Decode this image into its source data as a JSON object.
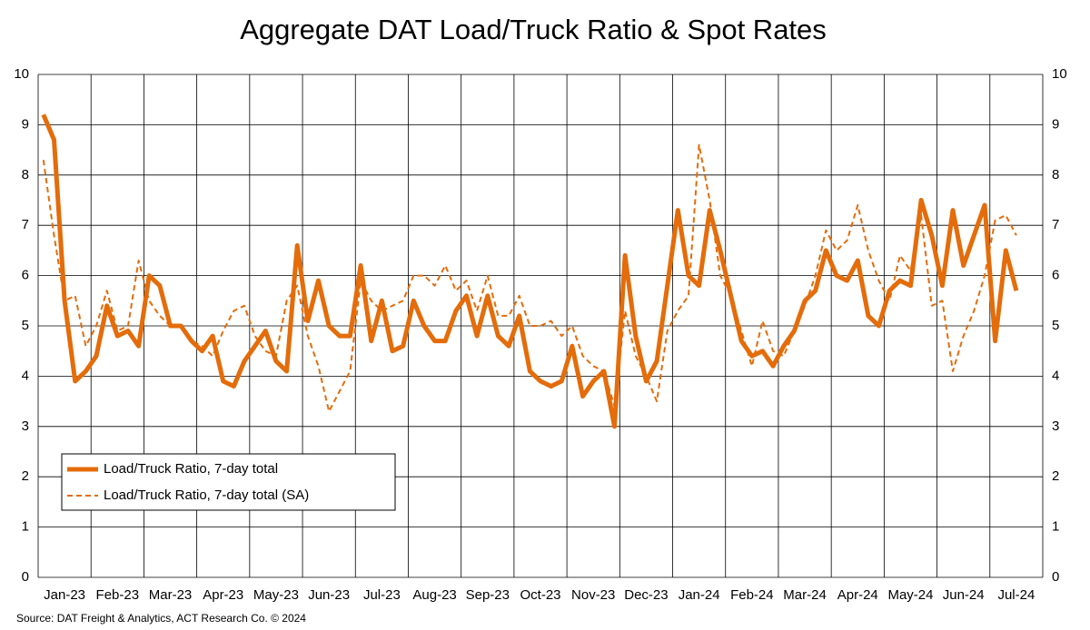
{
  "chart_data": {
    "type": "line",
    "title": "Aggregate DAT Load/Truck Ratio & Spot Rates",
    "source": "Source: DAT Freight & Analytics, ACT Research Co. © 2024",
    "categories": [
      null,
      null,
      "Jan-23",
      null,
      null,
      null,
      null,
      "Feb-23",
      null,
      null,
      null,
      null,
      "Mar-23",
      null,
      null,
      null,
      null,
      "Apr-23",
      null,
      null,
      null,
      null,
      "May-23",
      null,
      null,
      null,
      null,
      "Jun-23",
      null,
      null,
      null,
      null,
      "Jul-23",
      null,
      null,
      null,
      null,
      "Aug-23",
      null,
      null,
      null,
      null,
      "Sep-23",
      null,
      null,
      null,
      null,
      "Oct-23",
      null,
      null,
      null,
      null,
      "Nov-23",
      null,
      null,
      null,
      null,
      "Dec-23",
      null,
      null,
      null,
      null,
      "Jan-24",
      null,
      null,
      null,
      null,
      "Feb-24",
      null,
      null,
      null,
      null,
      "Mar-24",
      null,
      null,
      null,
      null,
      "Apr-24",
      null,
      null,
      null,
      null,
      "May-24",
      null,
      null,
      null,
      null,
      "Jun-24",
      null,
      null,
      null,
      null,
      "Jul-24",
      null,
      null
    ],
    "series": [
      {
        "name": "Load/Truck Ratio, 7-day total",
        "color": "#e46c0a",
        "dash": false,
        "values": [
          9.2,
          8.7,
          5.5,
          3.9,
          4.1,
          4.4,
          5.4,
          4.8,
          4.9,
          4.6,
          6.0,
          5.8,
          5.0,
          5.0,
          4.7,
          4.5,
          4.8,
          3.9,
          3.8,
          4.3,
          4.6,
          4.9,
          4.3,
          4.1,
          6.6,
          5.1,
          5.9,
          5.0,
          4.8,
          4.8,
          6.2,
          4.7,
          5.5,
          4.5,
          4.6,
          5.5,
          5.0,
          4.7,
          4.7,
          5.3,
          5.6,
          4.8,
          5.6,
          4.8,
          4.6,
          5.2,
          4.1,
          3.9,
          3.8,
          3.9,
          4.6,
          3.6,
          3.9,
          4.1,
          3.0,
          6.4,
          4.8,
          3.9,
          4.3,
          5.8,
          7.3,
          6.0,
          5.8,
          7.3,
          6.5,
          5.6,
          4.7,
          4.4,
          4.5,
          4.2,
          4.6,
          4.9,
          5.5,
          5.7,
          6.5,
          6.0,
          5.9,
          6.3,
          5.2,
          5.0,
          5.7,
          5.9,
          5.8,
          7.5,
          6.8,
          5.8,
          7.3,
          6.2,
          6.8,
          7.4,
          4.7,
          6.5,
          5.7,
          null,
          null
        ]
      },
      {
        "name": "Load/Truck Ratio, 7-day total (SA)",
        "color": "#e46c0a",
        "dash": true,
        "values": [
          8.3,
          6.8,
          5.5,
          5.6,
          4.6,
          5.0,
          5.7,
          4.9,
          5.0,
          6.3,
          5.5,
          5.2,
          5.0,
          5.0,
          4.7,
          4.6,
          4.4,
          4.9,
          5.3,
          5.4,
          4.8,
          4.5,
          4.4,
          5.5,
          5.8,
          4.8,
          4.2,
          3.3,
          3.7,
          4.1,
          5.9,
          5.5,
          5.3,
          5.4,
          5.5,
          6.0,
          6.0,
          5.8,
          6.2,
          5.7,
          5.9,
          5.3,
          6.0,
          5.2,
          5.2,
          5.6,
          5.0,
          5.0,
          5.1,
          4.8,
          5.0,
          4.4,
          4.2,
          4.1,
          3.4,
          5.3,
          4.4,
          4.0,
          3.5,
          4.9,
          5.3,
          5.6,
          8.6,
          7.5,
          6.0,
          5.6,
          4.9,
          4.2,
          5.1,
          4.5,
          4.4,
          4.9,
          5.4,
          6.0,
          6.9,
          6.5,
          6.7,
          7.4,
          6.5,
          5.9,
          5.5,
          6.4,
          6.1,
          7.2,
          5.4,
          5.5,
          4.1,
          4.8,
          5.3,
          6.0,
          7.1,
          7.2,
          6.8,
          null,
          null
        ]
      }
    ],
    "ylim": [
      0,
      10
    ],
    "yticks": [
      0,
      1,
      2,
      3,
      4,
      5,
      6,
      7,
      8,
      9,
      10
    ],
    "y2lim": [
      0,
      10
    ],
    "y2ticks": [
      0,
      1,
      2,
      3,
      4,
      5,
      6,
      7,
      8,
      9,
      10
    ],
    "grid": true,
    "legend": "lower left"
  }
}
